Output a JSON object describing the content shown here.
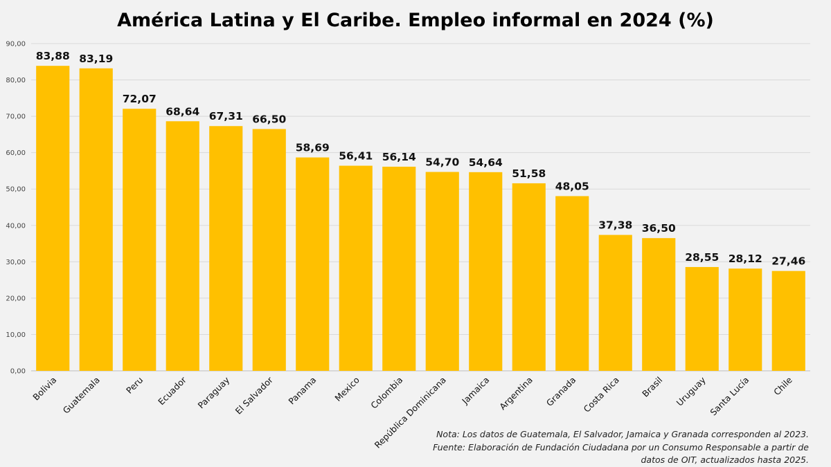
{
  "chart_data": {
    "type": "bar",
    "title": "América Latina y El Caribe. Empleo informal en 2024 (%)",
    "xlabel": "",
    "ylabel": "",
    "ylim": [
      0,
      90
    ],
    "y_ticks": [
      "0,00",
      "10,00",
      "20,00",
      "30,00",
      "40,00",
      "50,00",
      "60,00",
      "70,00",
      "80,00",
      "90,00"
    ],
    "grid": true,
    "bar_color": "#ffc000",
    "categories": [
      "Bolivia",
      "Guatemala",
      "Peru",
      "Ecuador",
      "Paraguay",
      "El Salvador",
      "Panama",
      "Mexico",
      "Colombia",
      "República Dominicana",
      "Jamaica",
      "Argentina",
      "Granada",
      "Costa Rica",
      "Brasil",
      "Uruguay",
      "Santa Lucía",
      "Chile"
    ],
    "values": [
      83.88,
      83.19,
      72.07,
      68.64,
      67.31,
      66.5,
      58.69,
      56.41,
      56.14,
      54.7,
      54.64,
      51.58,
      48.05,
      37.38,
      36.5,
      28.55,
      28.12,
      27.46
    ],
    "value_labels": [
      "83,88",
      "83,19",
      "72,07",
      "68,64",
      "67,31",
      "66,50",
      "58,69",
      "56,41",
      "56,14",
      "54,70",
      "54,64",
      "51,58",
      "48,05",
      "37,38",
      "36,50",
      "28,55",
      "28,12",
      "27,46"
    ]
  },
  "notes": [
    "Nota: Los datos de Guatemala, El Salvador, Jamaica y Granada corresponden al 2023.",
    "Fuente: Elaboración de Fundación Ciudadana por un Consumo Responsable a partir de",
    "datos de OIT, actualizados hasta 2025."
  ]
}
